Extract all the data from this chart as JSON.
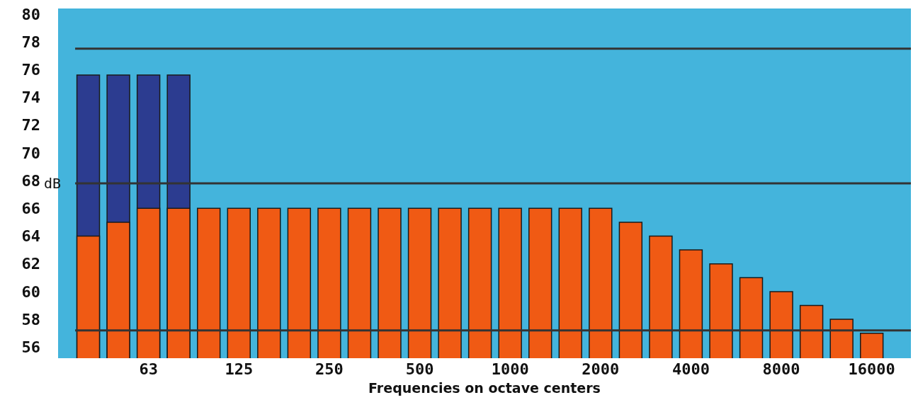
{
  "chart_data": {
    "type": "bar",
    "xlabel": "Frequencies on octave centers",
    "ylabel": "dB",
    "categories": [
      null,
      null,
      "63",
      null,
      null,
      "125",
      null,
      null,
      "250",
      null,
      null,
      "500",
      null,
      null,
      "1000",
      null,
      null,
      "2000",
      null,
      null,
      "4000",
      null,
      null,
      "8000",
      null,
      null,
      "16000"
    ],
    "series": [
      {
        "color": "#2c3c90",
        "values": [
          75.6,
          75.6,
          75.6,
          75.6,
          null,
          null,
          null,
          null,
          null,
          null,
          null,
          null,
          null,
          null,
          null,
          null,
          null,
          null,
          null,
          null,
          null,
          null,
          null,
          null,
          null,
          null,
          null
        ]
      },
      {
        "color": "#f05a14",
        "values": [
          64,
          65,
          66,
          66,
          66,
          66,
          66,
          66,
          66,
          66,
          66,
          66,
          66,
          66,
          66,
          66,
          66,
          66,
          65,
          64,
          63,
          62,
          61,
          60,
          59,
          58,
          57
        ]
      }
    ],
    "ylim": [
      55.2,
      80.4
    ],
    "yticks": [
      56,
      58,
      60,
      62,
      64,
      66,
      68,
      70,
      72,
      74,
      76,
      78,
      80
    ],
    "ref_lines": [
      {
        "axis": "y",
        "value": 77.5,
        "color": "#333333"
      },
      {
        "axis": "y",
        "value": 67.8,
        "color": "#333333"
      },
      {
        "axis": "y",
        "value": 57.2,
        "color": "#333333"
      }
    ],
    "grid": false
  }
}
